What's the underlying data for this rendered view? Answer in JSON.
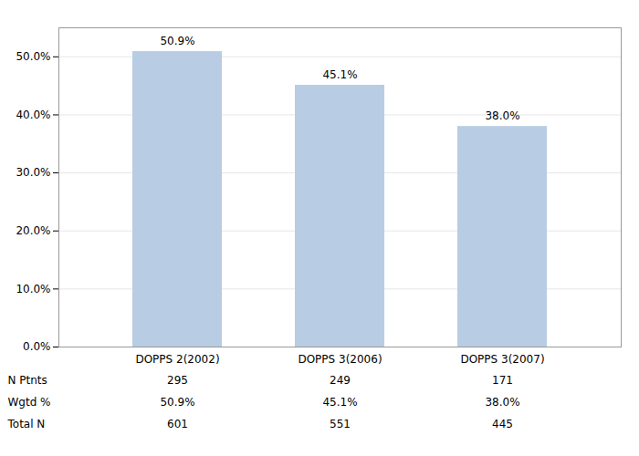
{
  "chart_data": {
    "type": "bar",
    "categories": [
      "DOPPS 2(2002)",
      "DOPPS 3(2006)",
      "DOPPS 3(2007)"
    ],
    "values": [
      50.9,
      45.1,
      38.0
    ],
    "value_labels": [
      "50.9%",
      "45.1%",
      "38.0%"
    ],
    "data_labels": true,
    "color": "#b8cce4",
    "ylim": [
      0,
      55
    ],
    "yticks": [
      {
        "value": 0,
        "label": "0.0%"
      },
      {
        "value": 10,
        "label": "10.0%"
      },
      {
        "value": 20,
        "label": "20.0%"
      },
      {
        "value": 30,
        "label": "30.0%"
      },
      {
        "value": 40,
        "label": "40.0%"
      },
      {
        "value": 50,
        "label": "50.0%"
      }
    ],
    "grid": true,
    "table_rows": [
      "N Ptnts",
      "Wgtd %",
      "Total N"
    ],
    "table_data": [
      [
        "295",
        "249",
        "171"
      ],
      [
        "50.9%",
        "45.1%",
        "38.0%"
      ],
      [
        "601",
        "551",
        "445"
      ]
    ]
  }
}
